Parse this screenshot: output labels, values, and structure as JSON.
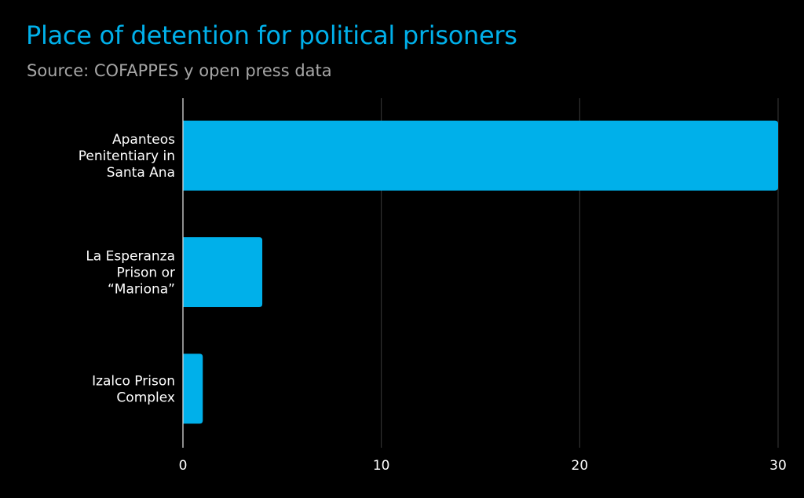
{
  "chart_data": {
    "type": "bar",
    "orientation": "horizontal",
    "title": "Place of detention for political prisoners",
    "subtitle": "Source: COFAPPES y open press data",
    "categories": [
      [
        "Apanteos",
        "Penitentiary in",
        "Santa Ana"
      ],
      [
        "La Esperanza",
        "Prison or",
        "“Mariona”"
      ],
      [
        "Izalco Prison",
        "Complex"
      ]
    ],
    "values": [
      30,
      4,
      1
    ],
    "xlabel": "",
    "ylabel": "",
    "xlim": [
      0,
      30
    ],
    "xticks": [
      0,
      10,
      20,
      30
    ],
    "xtick_labels": [
      "0",
      "10",
      "20",
      "30"
    ],
    "grid": "vertical",
    "legend": "none",
    "colors": {
      "bar": "#00b0ea",
      "background": "#000000",
      "grid": "#3a3a3a",
      "axis": "#d9d9d9",
      "title": "#00b0ea",
      "subtitle": "#a6a6a6"
    }
  }
}
